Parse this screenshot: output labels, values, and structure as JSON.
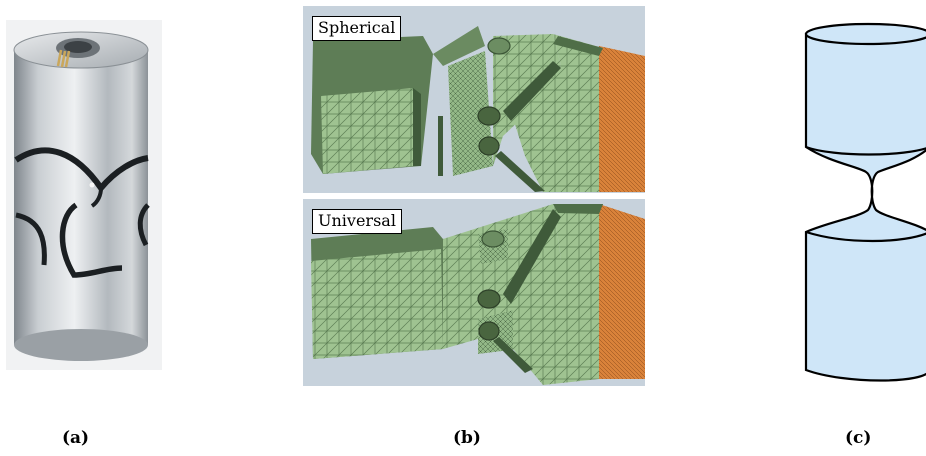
{
  "figure": {
    "panel_b": {
      "top_label": "Spherical",
      "bottom_label": "Universal"
    },
    "captions": {
      "a": "(a)",
      "b": "(b)",
      "c": "(c)"
    }
  },
  "colors": {
    "metal_light": "#dcdfe2",
    "metal_dark": "#8e949a",
    "mesh_green": "#9bbf8c",
    "mesh_dark_green": "#5f7f58",
    "mesh_orange": "#d9823a",
    "viewport_bg": "#c5d1dc",
    "shape_fill": "#cfe6f8"
  }
}
